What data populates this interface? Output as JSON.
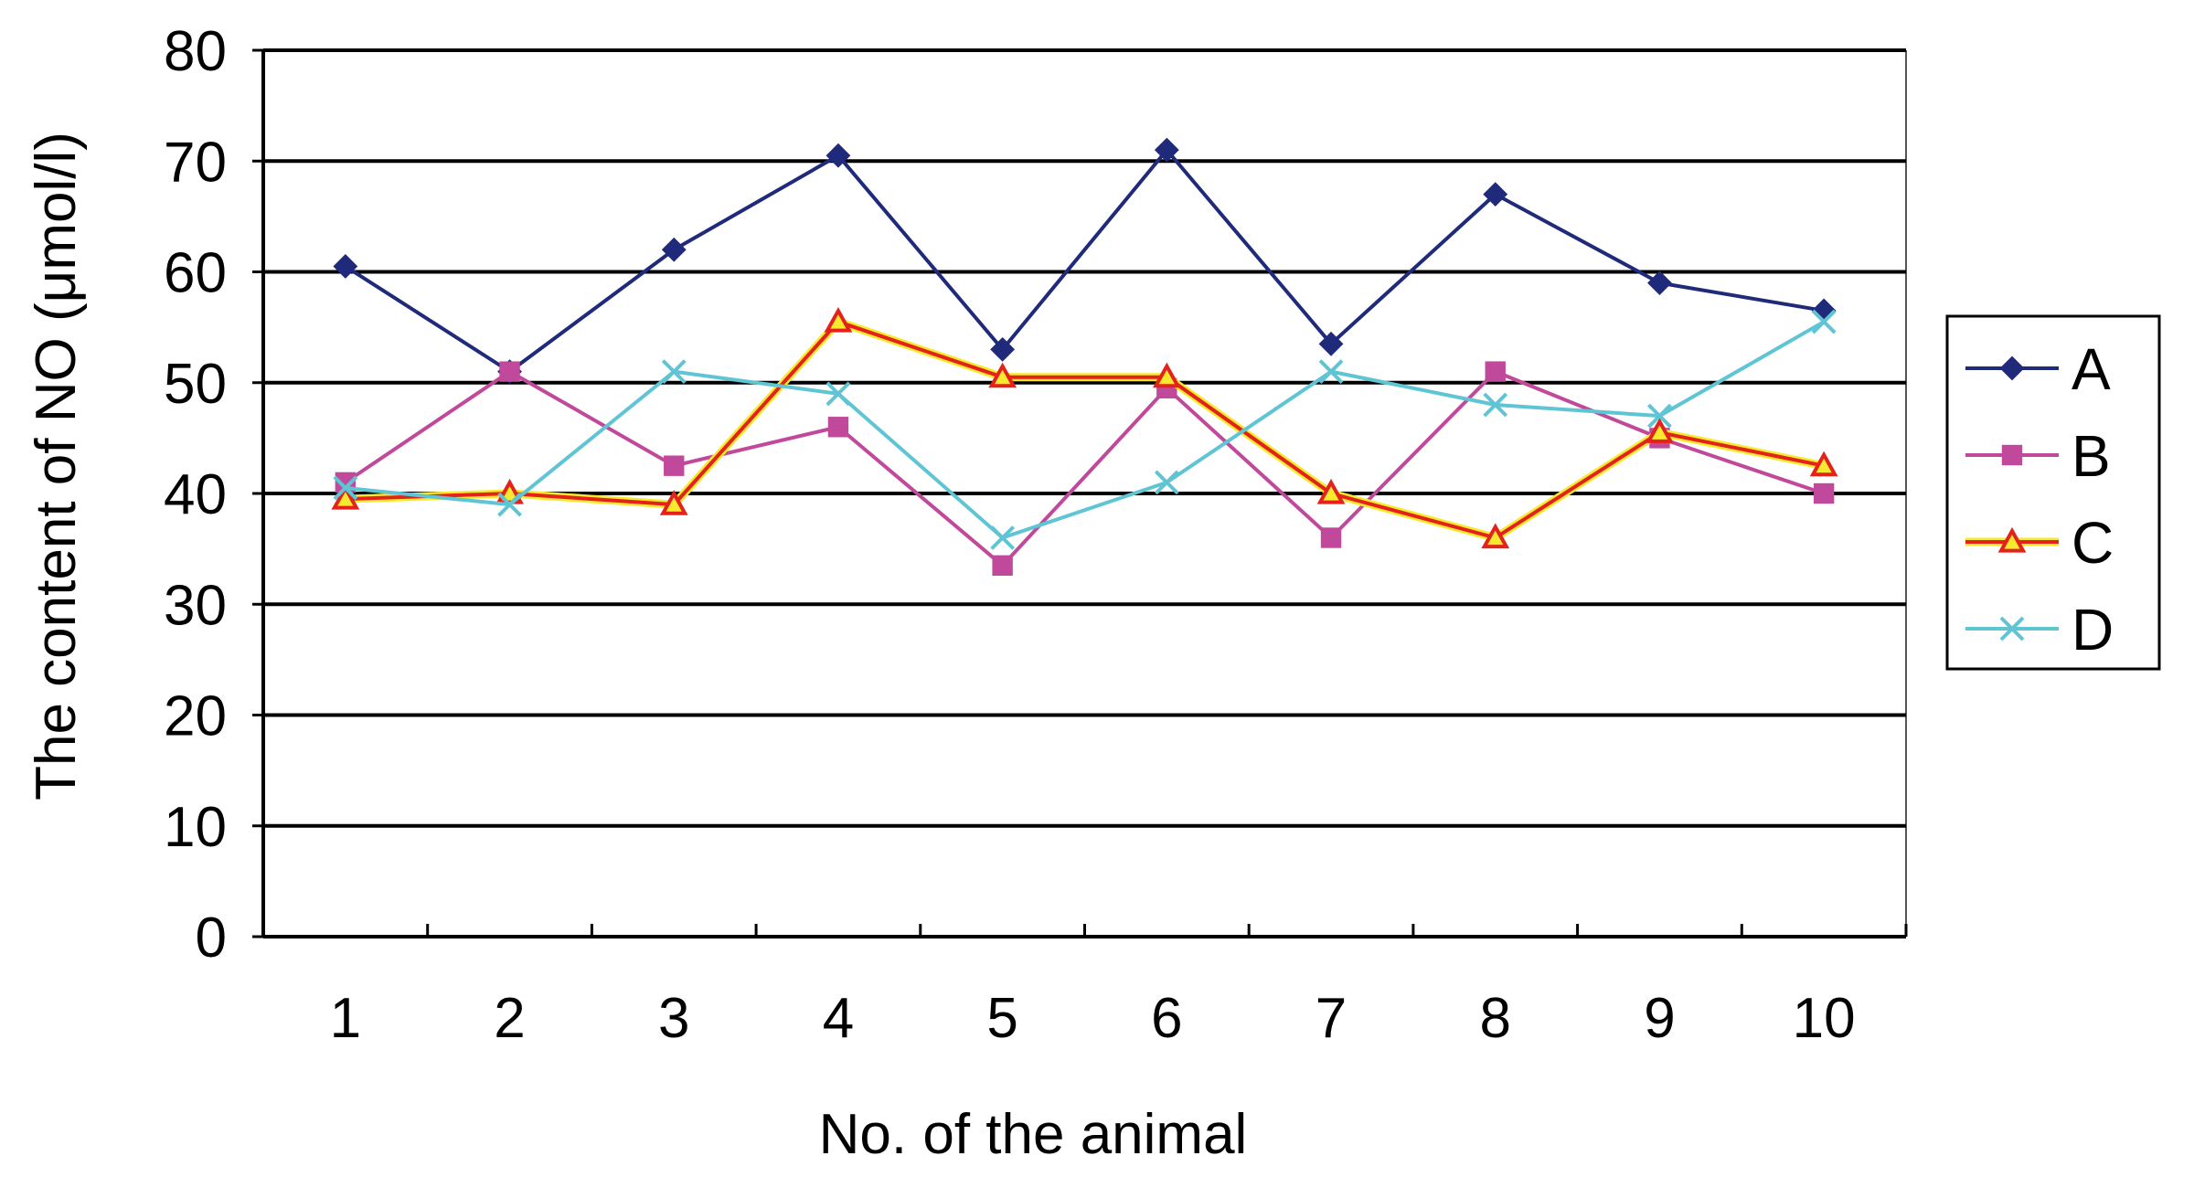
{
  "chart_data": {
    "type": "line",
    "title": "",
    "xlabel": "No. of the animal",
    "ylabel": "The content of NO (μmol/l)",
    "categories": [
      "1",
      "2",
      "3",
      "4",
      "5",
      "6",
      "7",
      "8",
      "9",
      "10"
    ],
    "ylim": [
      0,
      80
    ],
    "yticks": [
      0,
      10,
      20,
      30,
      40,
      50,
      60,
      70,
      80
    ],
    "grid": true,
    "legend_position": "right",
    "series": [
      {
        "name": "A",
        "color": "#1f2a7a",
        "marker": "diamond",
        "values": [
          60.5,
          51,
          62,
          70.5,
          53,
          71,
          53.5,
          67,
          59,
          56.5
        ]
      },
      {
        "name": "B",
        "color": "#c1499b",
        "marker": "square",
        "values": [
          41,
          51,
          42.5,
          46,
          33.5,
          49.5,
          36,
          51,
          45,
          40
        ]
      },
      {
        "name": "C",
        "color": "#e3231b",
        "fill": "#f7ea2e",
        "marker": "triangle",
        "values": [
          39.5,
          40,
          39,
          55.5,
          50.5,
          50.5,
          40,
          36,
          45.5,
          42.5
        ]
      },
      {
        "name": "D",
        "color": "#5fc4d4",
        "marker": "x",
        "values": [
          40.5,
          39,
          51,
          49,
          36,
          41,
          51,
          48,
          47,
          55.5
        ]
      }
    ]
  }
}
